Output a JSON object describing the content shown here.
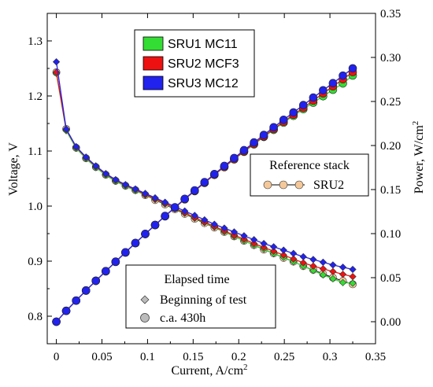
{
  "chart_data": {
    "type": "line",
    "xlabel": "Current, A/cm",
    "xlabel_sup": "2",
    "ylabel_left": "Voltage, V",
    "ylabel_right": "Power, W/cm",
    "ylabel_right_sup": "2",
    "xlim": [
      -0.01,
      0.35
    ],
    "ylim_left": [
      0.75,
      1.35
    ],
    "ylim_right": [
      -0.025,
      0.35
    ],
    "x_ticks": [
      "0",
      "0.05",
      "0.1",
      "0.15",
      "0.2",
      "0.25",
      "0.3",
      "0.35"
    ],
    "x_tick_values": [
      0,
      0.05,
      0.1,
      0.15,
      0.2,
      0.25,
      0.3,
      0.35
    ],
    "y_left_ticks": [
      "0.8",
      "0.9",
      "1.0",
      "1.1",
      "1.2",
      "1.3"
    ],
    "y_left_tick_values": [
      0.8,
      0.9,
      1.0,
      1.1,
      1.2,
      1.3
    ],
    "y_right_ticks": [
      "0.00",
      "0.05",
      "0.10",
      "0.15",
      "0.20",
      "0.25",
      "0.30",
      "0.35"
    ],
    "y_right_tick_values": [
      0.0,
      0.05,
      0.1,
      0.15,
      0.2,
      0.25,
      0.3,
      0.35
    ],
    "x": [
      0,
      0.0108,
      0.0217,
      0.0325,
      0.0433,
      0.0542,
      0.065,
      0.0758,
      0.0867,
      0.0975,
      0.1083,
      0.1192,
      0.13,
      0.1408,
      0.1517,
      0.1625,
      0.1733,
      0.1842,
      0.195,
      0.2058,
      0.2167,
      0.2275,
      0.2383,
      0.2492,
      0.26,
      0.2708,
      0.2817,
      0.2925,
      0.3033,
      0.3142,
      0.325
    ],
    "series": [
      {
        "name": "SRU1 MC11",
        "axis": "voltage",
        "color": "#33dd33",
        "values": [
          1.241,
          1.137,
          1.105,
          1.086,
          1.07,
          1.056,
          1.045,
          1.036,
          1.028,
          1.02,
          1.012,
          1.004,
          0.995,
          0.987,
          0.978,
          0.97,
          0.962,
          0.953,
          0.945,
          0.937,
          0.929,
          0.922,
          0.914,
          0.907,
          0.899,
          0.891,
          0.883,
          0.875,
          0.868,
          0.861,
          0.86
        ]
      },
      {
        "name": "SRU2 MCF3",
        "axis": "voltage",
        "color": "#ee1111",
        "values": [
          1.243,
          1.139,
          1.107,
          1.088,
          1.072,
          1.058,
          1.047,
          1.038,
          1.03,
          1.021,
          1.013,
          1.005,
          0.996,
          0.988,
          0.979,
          0.971,
          0.963,
          0.955,
          0.947,
          0.94,
          0.932,
          0.925,
          0.918,
          0.911,
          0.904,
          0.897,
          0.891,
          0.886,
          0.881,
          0.876,
          0.872
        ]
      },
      {
        "name": "SRU3 MC12",
        "axis": "voltage",
        "color": "#2222ee",
        "values": [
          1.262,
          1.14,
          1.108,
          1.089,
          1.073,
          1.059,
          1.048,
          1.039,
          1.031,
          1.023,
          1.015,
          1.007,
          0.999,
          0.991,
          0.983,
          0.975,
          0.967,
          0.96,
          0.953,
          0.946,
          0.939,
          0.932,
          0.926,
          0.92,
          0.914,
          0.908,
          0.903,
          0.898,
          0.893,
          0.889,
          0.885
        ]
      },
      {
        "name": "SRU2",
        "axis": "voltage",
        "color": "#f5c89a",
        "reference": true,
        "values": [
          1.243,
          1.14,
          1.106,
          1.087,
          1.071,
          1.057,
          1.046,
          1.037,
          1.029,
          1.02,
          1.011,
          1.003,
          0.994,
          0.986,
          0.977,
          0.969,
          0.961,
          0.953,
          0.945,
          0.937,
          0.929,
          0.921,
          0.914,
          0.906,
          0.899,
          0.891,
          0.884,
          0.877,
          0.87,
          0.864,
          0.858
        ]
      },
      {
        "name": "SRU1 MC11",
        "axis": "power",
        "color": "#33dd33",
        "values": [
          0.0,
          0.0123,
          0.0239,
          0.0353,
          0.0464,
          0.0572,
          0.0679,
          0.0785,
          0.0891,
          0.0995,
          0.1096,
          0.1197,
          0.1294,
          0.139,
          0.1483,
          0.1576,
          0.1667,
          0.1755,
          0.1843,
          0.1929,
          0.2013,
          0.2098,
          0.2178,
          0.226,
          0.2337,
          0.2413,
          0.2487,
          0.256,
          0.2633,
          0.2705,
          0.2795
        ]
      },
      {
        "name": "SRU2 MCF3",
        "axis": "power",
        "color": "#ee1111",
        "values": [
          0.0,
          0.0123,
          0.024,
          0.0354,
          0.0464,
          0.0573,
          0.0681,
          0.0787,
          0.0893,
          0.0995,
          0.1097,
          0.1198,
          0.1295,
          0.1391,
          0.1485,
          0.1578,
          0.1669,
          0.1759,
          0.1847,
          0.1935,
          0.202,
          0.2104,
          0.2188,
          0.227,
          0.235,
          0.2429,
          0.251,
          0.2592,
          0.2672,
          0.2752,
          0.2834
        ]
      },
      {
        "name": "SRU3 MC12",
        "axis": "power",
        "color": "#2222ee",
        "values": [
          0.0,
          0.0123,
          0.024,
          0.0354,
          0.0465,
          0.0574,
          0.0681,
          0.0788,
          0.0894,
          0.0997,
          0.1099,
          0.12,
          0.1299,
          0.1395,
          0.1491,
          0.1584,
          0.1676,
          0.1768,
          0.1858,
          0.1947,
          0.2035,
          0.212,
          0.2207,
          0.2292,
          0.2376,
          0.2459,
          0.2544,
          0.2627,
          0.2708,
          0.2793,
          0.2876
        ]
      }
    ],
    "legend_main": {
      "placement": "top-center",
      "entries": [
        {
          "label": "SRU1 MC11",
          "color": "#33dd33"
        },
        {
          "label": "SRU2 MCF3",
          "color": "#ee1111"
        },
        {
          "label": "SRU3 MC12",
          "color": "#2222ee"
        }
      ]
    },
    "legend_reference": {
      "placement": "center-right",
      "title": "Reference stack",
      "entry": "SRU2",
      "color": "#f5c89a"
    },
    "legend_time": {
      "placement": "bottom-center",
      "title": "Elapsed time",
      "entries": [
        {
          "label": "Beginning of test",
          "marker": "diamond",
          "color": "#bbbbbb"
        },
        {
          "label": "c.a. 430h",
          "marker": "circle",
          "color": "#bbbbbb"
        }
      ]
    },
    "grid": false
  }
}
